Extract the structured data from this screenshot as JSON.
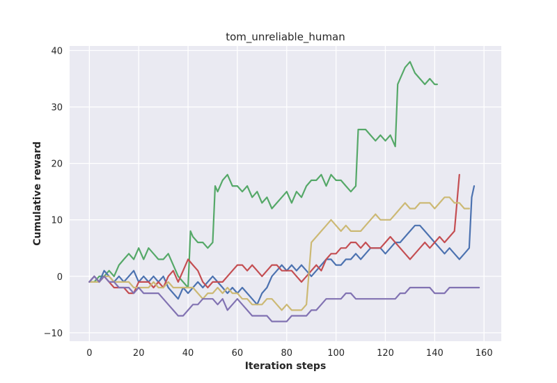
{
  "chart_data": {
    "type": "line",
    "title": "tom_unreliable_human",
    "xlabel": "Iteration steps",
    "ylabel": "Cumulative reward",
    "xlim": [
      -8,
      167
    ],
    "ylim": [
      -11.5,
      40.8
    ],
    "xticks": [
      0,
      20,
      40,
      60,
      80,
      100,
      120,
      140,
      160
    ],
    "yticks": [
      -10,
      0,
      10,
      20,
      30,
      40
    ],
    "xtick_labels": [
      "0",
      "20",
      "40",
      "60",
      "80",
      "100",
      "120",
      "140",
      "160"
    ],
    "ytick_labels": [
      "−10",
      "0",
      "10",
      "20",
      "30",
      "40"
    ],
    "grid": true,
    "background": "#eaeaf2",
    "series": [
      {
        "color": "#55a868",
        "x": [
          0,
          2,
          4,
          6,
          8,
          10,
          12,
          14,
          16,
          18,
          20,
          22,
          24,
          26,
          28,
          30,
          32,
          34,
          36,
          38,
          40,
          41,
          42,
          44,
          46,
          48,
          50,
          51,
          52,
          54,
          56,
          58,
          60,
          62,
          64,
          66,
          68,
          70,
          72,
          74,
          76,
          78,
          80,
          82,
          84,
          86,
          88,
          90,
          92,
          94,
          96,
          98,
          100,
          102,
          104,
          106,
          108,
          109,
          110,
          112,
          114,
          116,
          118,
          120,
          122,
          124,
          125,
          126,
          128,
          130,
          132,
          134,
          136,
          138,
          140,
          141
        ],
        "y": [
          -1,
          -1,
          0,
          0,
          1,
          0,
          2,
          3,
          4,
          3,
          5,
          3,
          5,
          4,
          3,
          3,
          4,
          2,
          0,
          -1,
          -2,
          8,
          7,
          6,
          6,
          5,
          6,
          16,
          15,
          17,
          18,
          16,
          16,
          15,
          16,
          14,
          15,
          13,
          14,
          12,
          13,
          14,
          15,
          13,
          15,
          14,
          16,
          17,
          17,
          18,
          16,
          18,
          17,
          17,
          16,
          15,
          16,
          26,
          26,
          26,
          25,
          24,
          25,
          24,
          25,
          23,
          34,
          35,
          37,
          38,
          36,
          35,
          34,
          35,
          34,
          34
        ]
      },
      {
        "color": "#4c72b0",
        "x": [
          0,
          2,
          4,
          6,
          8,
          10,
          12,
          14,
          16,
          18,
          20,
          22,
          24,
          26,
          28,
          30,
          32,
          34,
          36,
          38,
          40,
          42,
          44,
          46,
          48,
          50,
          52,
          54,
          56,
          58,
          60,
          62,
          64,
          66,
          68,
          70,
          72,
          74,
          76,
          78,
          80,
          82,
          84,
          86,
          88,
          90,
          92,
          94,
          96,
          98,
          100,
          102,
          104,
          106,
          108,
          110,
          112,
          114,
          116,
          118,
          120,
          122,
          124,
          126,
          128,
          130,
          132,
          134,
          136,
          138,
          140,
          142,
          144,
          146,
          148,
          150,
          152,
          154,
          155,
          156
        ],
        "y": [
          -1,
          0,
          -1,
          1,
          0,
          -1,
          0,
          -1,
          0,
          1,
          -1,
          0,
          -1,
          0,
          -1,
          0,
          -2,
          -3,
          -4,
          -2,
          -3,
          -2,
          -1,
          -2,
          -1,
          0,
          -1,
          -2,
          -3,
          -2,
          -3,
          -2,
          -3,
          -4,
          -5,
          -3,
          -2,
          0,
          1,
          2,
          1,
          2,
          1,
          2,
          1,
          0,
          1,
          2,
          3,
          3,
          2,
          2,
          3,
          3,
          4,
          3,
          4,
          5,
          5,
          5,
          4,
          5,
          6,
          6,
          7,
          8,
          9,
          9,
          8,
          7,
          6,
          5,
          4,
          5,
          4,
          3,
          4,
          5,
          14,
          16
        ]
      },
      {
        "color": "#c44e52",
        "x": [
          0,
          2,
          4,
          6,
          8,
          10,
          12,
          14,
          16,
          18,
          20,
          22,
          24,
          26,
          28,
          30,
          32,
          34,
          36,
          38,
          40,
          42,
          44,
          46,
          48,
          50,
          52,
          54,
          56,
          58,
          60,
          62,
          64,
          66,
          68,
          70,
          72,
          74,
          76,
          78,
          80,
          82,
          84,
          86,
          88,
          90,
          92,
          94,
          96,
          98,
          100,
          102,
          104,
          106,
          108,
          110,
          112,
          114,
          116,
          118,
          120,
          122,
          124,
          126,
          128,
          130,
          132,
          134,
          136,
          138,
          140,
          142,
          144,
          146,
          148,
          150
        ],
        "y": [
          -1,
          0,
          -1,
          0,
          -1,
          -2,
          -2,
          -2,
          -3,
          -3,
          -1,
          -1,
          -1,
          -2,
          -1,
          -2,
          0,
          1,
          -1,
          1,
          3,
          2,
          1,
          -1,
          -2,
          -1,
          -1,
          -1,
          0,
          1,
          2,
          2,
          1,
          2,
          1,
          0,
          1,
          2,
          2,
          1,
          1,
          1,
          0,
          -1,
          0,
          1,
          2,
          1,
          3,
          4,
          4,
          5,
          5,
          6,
          6,
          5,
          6,
          5,
          5,
          5,
          6,
          7,
          6,
          5,
          4,
          3,
          4,
          5,
          6,
          5,
          6,
          7,
          6,
          7,
          8,
          18
        ]
      },
      {
        "color": "#ccb974",
        "x": [
          0,
          2,
          4,
          6,
          8,
          10,
          12,
          14,
          16,
          18,
          20,
          22,
          24,
          26,
          28,
          30,
          32,
          34,
          36,
          38,
          40,
          42,
          44,
          46,
          48,
          50,
          52,
          54,
          56,
          58,
          60,
          62,
          64,
          66,
          68,
          70,
          72,
          74,
          76,
          78,
          80,
          82,
          84,
          86,
          88,
          90,
          92,
          94,
          96,
          98,
          100,
          102,
          104,
          106,
          108,
          110,
          112,
          114,
          116,
          118,
          120,
          122,
          124,
          126,
          128,
          130,
          132,
          134,
          136,
          138,
          140,
          142,
          144,
          146,
          148,
          150,
          152,
          154
        ],
        "y": [
          -1,
          -1,
          -1,
          0,
          0,
          -1,
          -1,
          -1,
          -1,
          -2,
          -2,
          -2,
          -2,
          -1,
          -2,
          -2,
          -1,
          -2,
          -2,
          -2,
          -2,
          -2,
          -3,
          -4,
          -3,
          -3,
          -2,
          -3,
          -2,
          -3,
          -3,
          -4,
          -4,
          -5,
          -5,
          -5,
          -4,
          -4,
          -5,
          -6,
          -5,
          -6,
          -6,
          -6,
          -5,
          6,
          7,
          8,
          9,
          10,
          9,
          8,
          9,
          8,
          8,
          8,
          9,
          10,
          11,
          10,
          10,
          10,
          11,
          12,
          13,
          12,
          12,
          13,
          13,
          13,
          12,
          13,
          14,
          14,
          13,
          13,
          12,
          12
        ]
      },
      {
        "color": "#8172b2",
        "x": [
          0,
          2,
          4,
          6,
          8,
          10,
          12,
          14,
          16,
          18,
          20,
          22,
          24,
          26,
          28,
          30,
          32,
          34,
          36,
          38,
          40,
          42,
          44,
          46,
          48,
          50,
          52,
          54,
          56,
          58,
          60,
          62,
          64,
          66,
          68,
          70,
          72,
          74,
          76,
          78,
          80,
          82,
          84,
          86,
          88,
          90,
          92,
          94,
          96,
          98,
          100,
          102,
          104,
          106,
          108,
          110,
          112,
          114,
          116,
          118,
          120,
          122,
          124,
          126,
          128,
          130,
          132,
          134,
          136,
          138,
          140,
          142,
          144,
          146,
          148,
          150,
          152,
          154,
          156,
          158
        ],
        "y": [
          -1,
          0,
          -1,
          0,
          -1,
          -1,
          -2,
          -2,
          -2,
          -3,
          -2,
          -3,
          -3,
          -3,
          -3,
          -4,
          -5,
          -6,
          -7,
          -7,
          -6,
          -5,
          -5,
          -4,
          -4,
          -4,
          -5,
          -4,
          -6,
          -5,
          -4,
          -5,
          -6,
          -7,
          -7,
          -7,
          -7,
          -8,
          -8,
          -8,
          -8,
          -7,
          -7,
          -7,
          -7,
          -6,
          -6,
          -5,
          -4,
          -4,
          -4,
          -4,
          -3,
          -3,
          -4,
          -4,
          -4,
          -4,
          -4,
          -4,
          -4,
          -4,
          -4,
          -3,
          -3,
          -2,
          -2,
          -2,
          -2,
          -2,
          -3,
          -3,
          -3,
          -2,
          -2,
          -2,
          -2,
          -2,
          -2,
          -2
        ]
      }
    ]
  }
}
